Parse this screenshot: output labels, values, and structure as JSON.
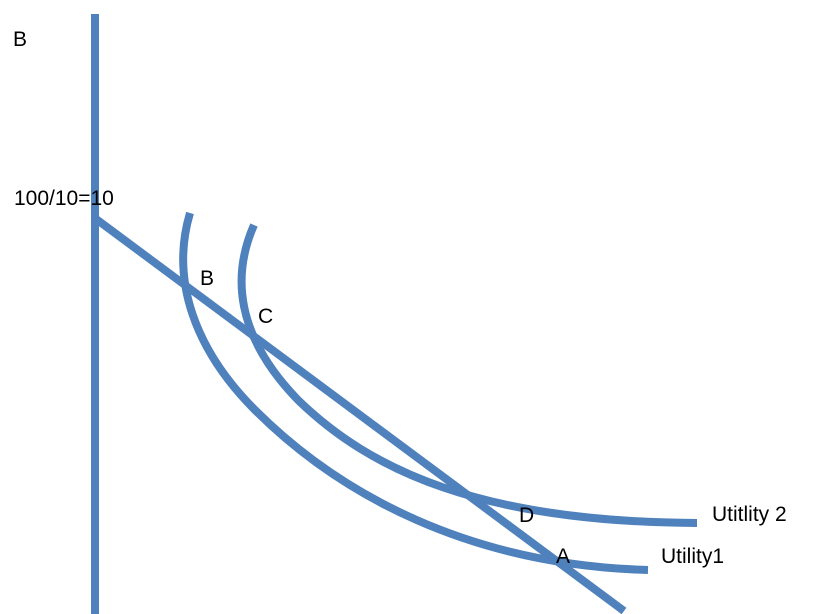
{
  "diagram": {
    "line_color": "#4f81bd",
    "text_color": "#000000",
    "axis_label": "B",
    "intercept_label": "100/10=10",
    "points": {
      "b": "B",
      "c": "C",
      "d": "D",
      "a": "A"
    },
    "curves": {
      "utility2": "Utitlity 2",
      "utility1": "Utility1"
    }
  }
}
